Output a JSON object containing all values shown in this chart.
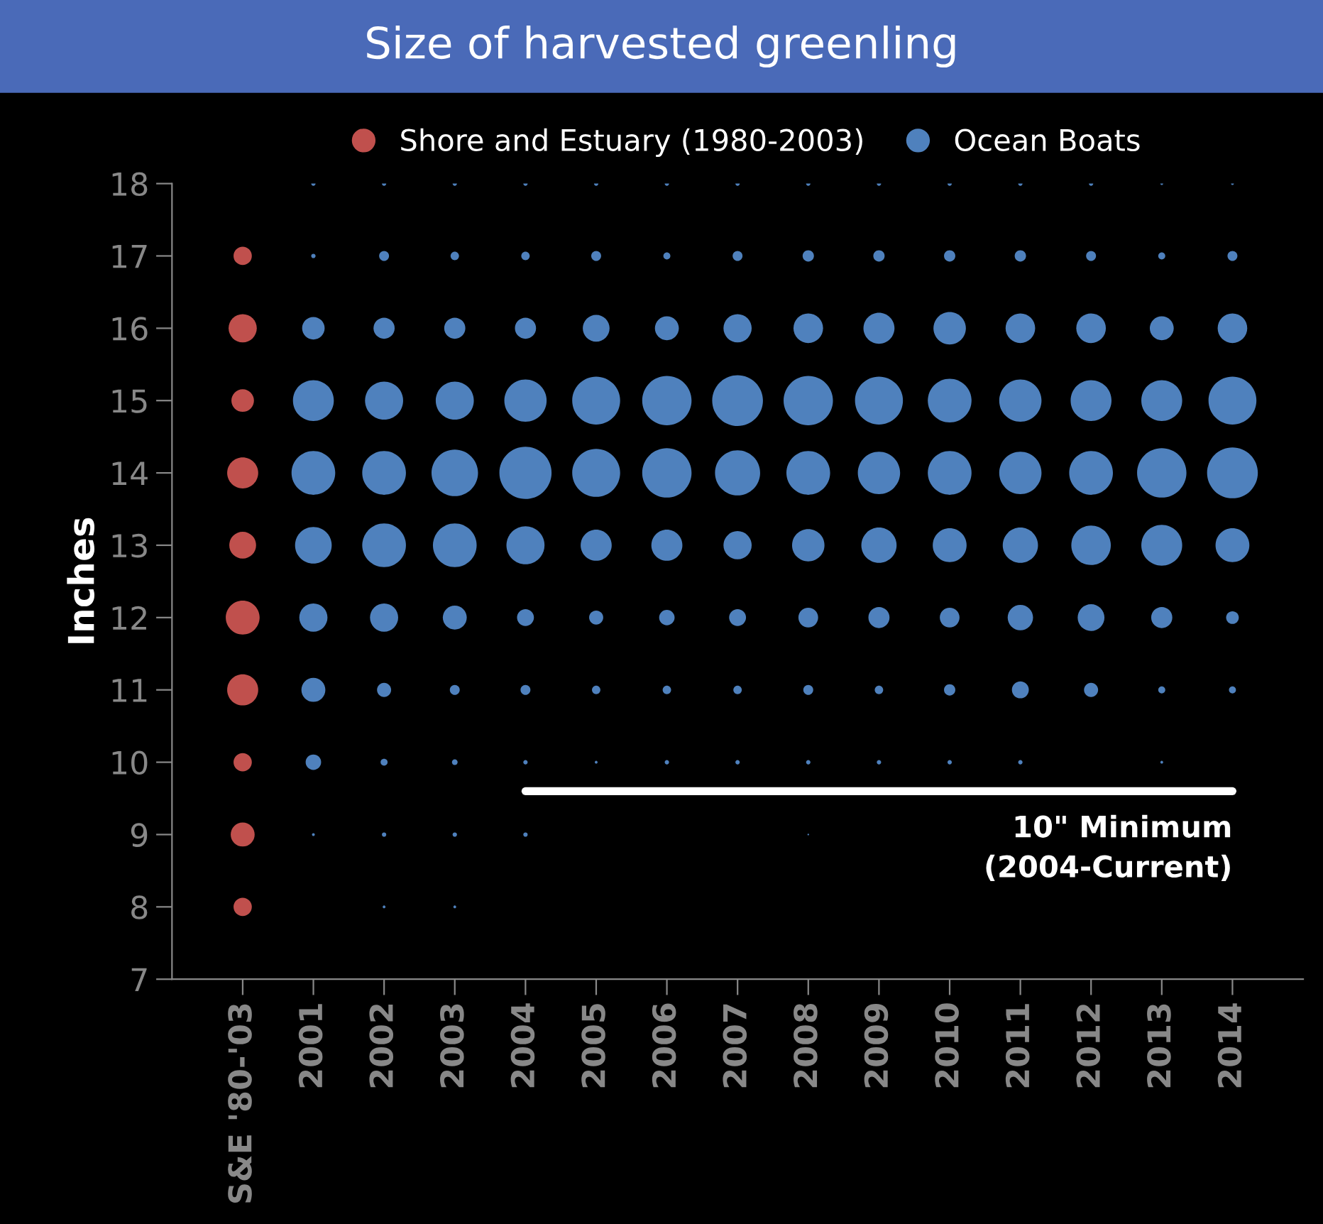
{
  "chart_data": {
    "type": "bubble",
    "title": "Size of harvested greenling",
    "ylabel": "Inches",
    "categories": [
      "S&E '80-'03",
      "2001",
      "2002",
      "2003",
      "2004",
      "2005",
      "2006",
      "2007",
      "2008",
      "2009",
      "2010",
      "2011",
      "2012",
      "2013",
      "2014"
    ],
    "ylim": [
      7,
      18
    ],
    "yticks": [
      7,
      8,
      9,
      10,
      11,
      12,
      13,
      14,
      15,
      16,
      17,
      18
    ],
    "grid": false,
    "legend": "top",
    "series": [
      {
        "name": "Shore and Estuary (1980-2003)",
        "color": "#c0504d",
        "x": [
          "S&E '80-'03",
          "S&E '80-'03",
          "S&E '80-'03",
          "S&E '80-'03",
          "S&E '80-'03",
          "S&E '80-'03",
          "S&E '80-'03",
          "S&E '80-'03",
          "S&E '80-'03",
          "S&E '80-'03"
        ],
        "values": [
          17,
          16,
          15,
          14,
          13,
          12,
          11,
          10,
          9,
          8
        ],
        "sizes": [
          0.123,
          0.292,
          0.187,
          0.354,
          0.264,
          0.421,
          0.354,
          0.123,
          0.211,
          0.123
        ]
      },
      {
        "name": "Ocean Boats",
        "color": "#4f81bd",
        "values": [
          null,
          18,
          18,
          18,
          18,
          18,
          18,
          18,
          18,
          18,
          18,
          18,
          18,
          18,
          18
        ],
        "sizes": [
          null,
          0.007,
          0.007,
          0.007,
          0.007,
          0.007,
          0.007,
          0.007,
          0.007,
          0.007,
          0.007,
          0.007,
          0.007,
          0.003,
          0.003
        ]
      },
      {
        "color": "#4f81bd",
        "values": [
          null,
          17,
          17,
          17,
          17,
          17,
          17,
          17,
          17,
          17,
          17,
          17,
          17,
          17,
          17
        ],
        "sizes": [
          null,
          0.007,
          0.036,
          0.026,
          0.026,
          0.036,
          0.018,
          0.036,
          0.047,
          0.047,
          0.047,
          0.047,
          0.036,
          0.018,
          0.036
        ]
      },
      {
        "color": "#4f81bd",
        "values": [
          null,
          16,
          16,
          16,
          16,
          16,
          16,
          16,
          16,
          16,
          16,
          16,
          16,
          16,
          16
        ],
        "sizes": [
          null,
          0.187,
          0.164,
          0.164,
          0.164,
          0.264,
          0.211,
          0.292,
          0.322,
          0.354,
          0.386,
          0.322,
          0.322,
          0.211,
          0.322
        ]
      },
      {
        "color": "#4f81bd",
        "values": [
          null,
          15,
          15,
          15,
          15,
          15,
          15,
          15,
          15,
          15,
          15,
          15,
          15,
          15,
          15
        ],
        "sizes": [
          null,
          0.614,
          0.533,
          0.533,
          0.657,
          0.844,
          0.895,
          0.947,
          0.895,
          0.844,
          0.702,
          0.657,
          0.614,
          0.614,
          0.844
        ]
      },
      {
        "color": "#4f81bd",
        "values": [
          null,
          14,
          14,
          14,
          14,
          14,
          14,
          14,
          14,
          14,
          14,
          14,
          14,
          14,
          14
        ],
        "sizes": [
          null,
          0.702,
          0.702,
          0.795,
          1,
          0.844,
          0.895,
          0.748,
          0.702,
          0.657,
          0.702,
          0.657,
          0.702,
          0.895,
          0.947
        ]
      },
      {
        "color": "#4f81bd",
        "values": [
          null,
          13,
          13,
          13,
          13,
          13,
          13,
          13,
          13,
          13,
          13,
          13,
          13,
          13,
          13
        ],
        "sizes": [
          null,
          0.494,
          0.702,
          0.702,
          0.533,
          0.354,
          0.354,
          0.292,
          0.386,
          0.457,
          0.421,
          0.457,
          0.573,
          0.614,
          0.421
        ]
      },
      {
        "color": "#4f81bd",
        "values": [
          null,
          12,
          12,
          12,
          12,
          12,
          12,
          12,
          12,
          12,
          12,
          12,
          12,
          12,
          12
        ],
        "sizes": [
          null,
          0.292,
          0.292,
          0.211,
          0.105,
          0.073,
          0.088,
          0.105,
          0.143,
          0.164,
          0.143,
          0.237,
          0.264,
          0.164,
          0.059
        ]
      },
      {
        "color": "#4f81bd",
        "values": [
          null,
          11,
          11,
          11,
          11,
          11,
          11,
          11,
          11,
          11,
          11,
          11,
          11,
          11,
          11
        ],
        "sizes": [
          null,
          0.211,
          0.073,
          0.036,
          0.036,
          0.026,
          0.026,
          0.026,
          0.036,
          0.026,
          0.047,
          0.105,
          0.073,
          0.018,
          0.018
        ]
      },
      {
        "color": "#4f81bd",
        "values": [
          null,
          10,
          10,
          10,
          10,
          10,
          10,
          10,
          10,
          10,
          10,
          10,
          null,
          10,
          null
        ],
        "sizes": [
          null,
          0.088,
          0.018,
          0.012,
          0.007,
          0.003,
          0.007,
          0.007,
          0.007,
          0.007,
          0.007,
          0.007,
          null,
          0.003,
          null
        ]
      },
      {
        "color": "#4f81bd",
        "values": [
          null,
          9,
          9,
          9,
          9,
          null,
          null,
          null,
          9,
          null,
          null,
          null,
          null,
          null,
          null
        ],
        "sizes": [
          null,
          0.003,
          0.007,
          0.007,
          0.007,
          null,
          null,
          null,
          0.001,
          null,
          null,
          null,
          null,
          null,
          null
        ]
      },
      {
        "color": "#4f81bd",
        "values": [
          null,
          null,
          8,
          8,
          null,
          null,
          null,
          null,
          null,
          null,
          null,
          null,
          null,
          null,
          null
        ],
        "sizes": [
          null,
          null,
          0.003,
          0.003,
          null,
          null,
          null,
          null,
          null,
          null,
          null,
          null,
          null,
          null,
          null
        ]
      },
      {
        "type": "line",
        "color": "#ffffff",
        "values": [
          null,
          null,
          null,
          null,
          9.6,
          9.6,
          9.6,
          9.6,
          9.6,
          9.6,
          9.6,
          9.6,
          9.6,
          9.6,
          9.6
        ]
      }
    ],
    "annotations": [
      {
        "text": "10\" Minimum\n(2004-Current)",
        "x": "2014",
        "y": 9.6
      }
    ]
  }
}
